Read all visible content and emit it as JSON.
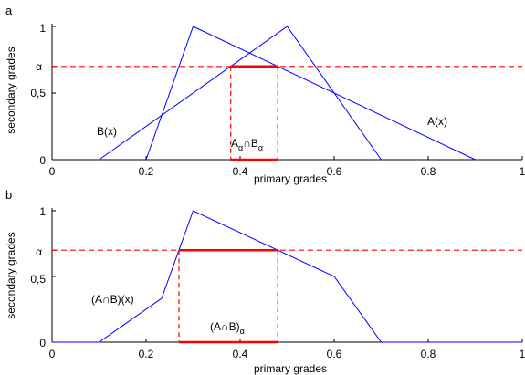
{
  "chart_data": [
    {
      "panel": "a",
      "type": "line",
      "xlabel": "primary grades",
      "ylabel": "secondary grades",
      "xlim": [
        0,
        1
      ],
      "ylim": [
        0,
        1
      ],
      "xticks": [
        "0",
        "0.2",
        "0.4",
        "0.6",
        "0.8",
        "1"
      ],
      "yticks": [
        "0",
        "0,5",
        "α",
        "1"
      ],
      "alpha": 0.7,
      "series": [
        {
          "name": "A(x)",
          "x": [
            0.2,
            0.3,
            0.9
          ],
          "y": [
            0,
            1,
            0
          ],
          "color": "#0000ff"
        },
        {
          "name": "B(x)",
          "x": [
            0.1,
            0.5,
            0.7
          ],
          "y": [
            0,
            1,
            0
          ],
          "color": "#0000ff"
        }
      ],
      "alpha_line": {
        "y": 0.7,
        "color": "#ff0000",
        "style": "dashed"
      },
      "alpha_cut": {
        "label_main": "A",
        "label_sub1": "α",
        "label_mid": "∩B",
        "label_sub2": "α",
        "x_from": 0.38,
        "x_to": 0.48,
        "color": "#ff0000"
      }
    },
    {
      "panel": "b",
      "type": "line",
      "xlabel": "primary grades",
      "ylabel": "secondary grades",
      "xlim": [
        0,
        1
      ],
      "ylim": [
        0,
        1
      ],
      "xticks": [
        "0",
        "0.2",
        "0.4",
        "0.6",
        "0.8",
        "1"
      ],
      "yticks": [
        "0",
        "0,5",
        "α",
        "1"
      ],
      "alpha": 0.7,
      "series": [
        {
          "name": "(A∩B)(x)",
          "x": [
            0,
            0.1,
            0.233,
            0.3,
            0.6,
            0.7,
            1
          ],
          "y": [
            0,
            0,
            0.333,
            1,
            0.5,
            0,
            0
          ],
          "color": "#0000ff"
        }
      ],
      "alpha_line": {
        "y": 0.7,
        "color": "#ff0000",
        "style": "dashed"
      },
      "alpha_cut": {
        "label_main": "(A∩B)",
        "label_sub1": "α",
        "x_from": 0.27,
        "x_to": 0.48,
        "color": "#ff0000"
      }
    }
  ]
}
